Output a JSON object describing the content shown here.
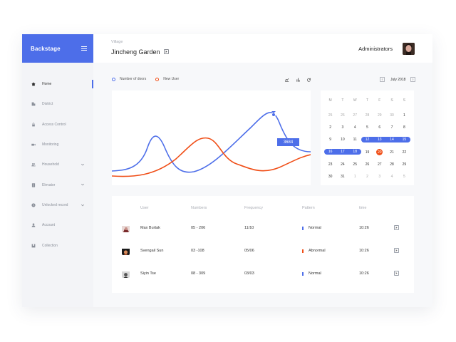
{
  "sidebar": {
    "brand": "Backstage",
    "items": [
      {
        "label": "Home",
        "icon": "home-icon"
      },
      {
        "label": "District",
        "icon": "building-icon"
      },
      {
        "label": "Access Control",
        "icon": "lock-icon"
      },
      {
        "label": "Monitoring",
        "icon": "camera-icon"
      },
      {
        "label": "Household",
        "icon": "users-icon"
      },
      {
        "label": "Elevator",
        "icon": "elevator-icon"
      },
      {
        "label": "Unlocked record",
        "icon": "clock-icon"
      },
      {
        "label": "Account",
        "icon": "person-icon"
      },
      {
        "label": "Collection",
        "icon": "bookmark-icon"
      }
    ]
  },
  "header": {
    "breadcrumb": "Village",
    "title": "Jincheng Garden",
    "role": "Administrators"
  },
  "chart": {
    "legend": [
      "Number of doors",
      "New User"
    ],
    "tooltip_value": "3684",
    "colors": {
      "number_of_doors": "#4d6ee9",
      "new_user": "#f04e17"
    }
  },
  "chart_data": {
    "type": "line",
    "series": [
      {
        "name": "Number of doors",
        "color": "#4d6ee9"
      },
      {
        "name": "New User",
        "color": "#f04e17"
      }
    ],
    "annotations": [
      "3684"
    ]
  },
  "calendar": {
    "month_label": "July 2018",
    "weekdays": [
      "M",
      "T",
      "W",
      "T",
      "F",
      "S",
      "S"
    ],
    "weeks": [
      [
        "25",
        "26",
        "27",
        "28",
        "29",
        "30",
        "1"
      ],
      [
        "2",
        "3",
        "4",
        "5",
        "6",
        "7",
        "8"
      ],
      [
        "9",
        "10",
        "11",
        "12",
        "13",
        "14",
        "15"
      ],
      [
        "16",
        "17",
        "18",
        "19",
        "20",
        "21",
        "22"
      ],
      [
        "23",
        "24",
        "25",
        "26",
        "27",
        "28",
        "29"
      ],
      [
        "30",
        "31",
        "1",
        "2",
        "3",
        "4",
        "5"
      ]
    ],
    "today": "20",
    "range": [
      "12",
      "18"
    ],
    "accent": "#4d6ee9",
    "today_color": "#f04e17"
  },
  "table": {
    "headers": [
      "User",
      "Numbers",
      "Frequency",
      "Pattern",
      "time"
    ],
    "rows": [
      {
        "user": "Max Burtak",
        "numbers": "05 - 206",
        "frequency": "11/10",
        "pattern": "Normal",
        "pattern_color": "#4d6ee9",
        "time": "10:26"
      },
      {
        "user": "Svengail Sun",
        "numbers": "03 -108",
        "frequency": "05/06",
        "pattern": "Abnormal",
        "pattern_color": "#f04e17",
        "time": "10:26"
      },
      {
        "user": "Siyin Tse",
        "numbers": "08 - 309",
        "frequency": "03/03",
        "pattern": "Normal",
        "pattern_color": "#4d6ee9",
        "time": "10:26"
      }
    ]
  }
}
